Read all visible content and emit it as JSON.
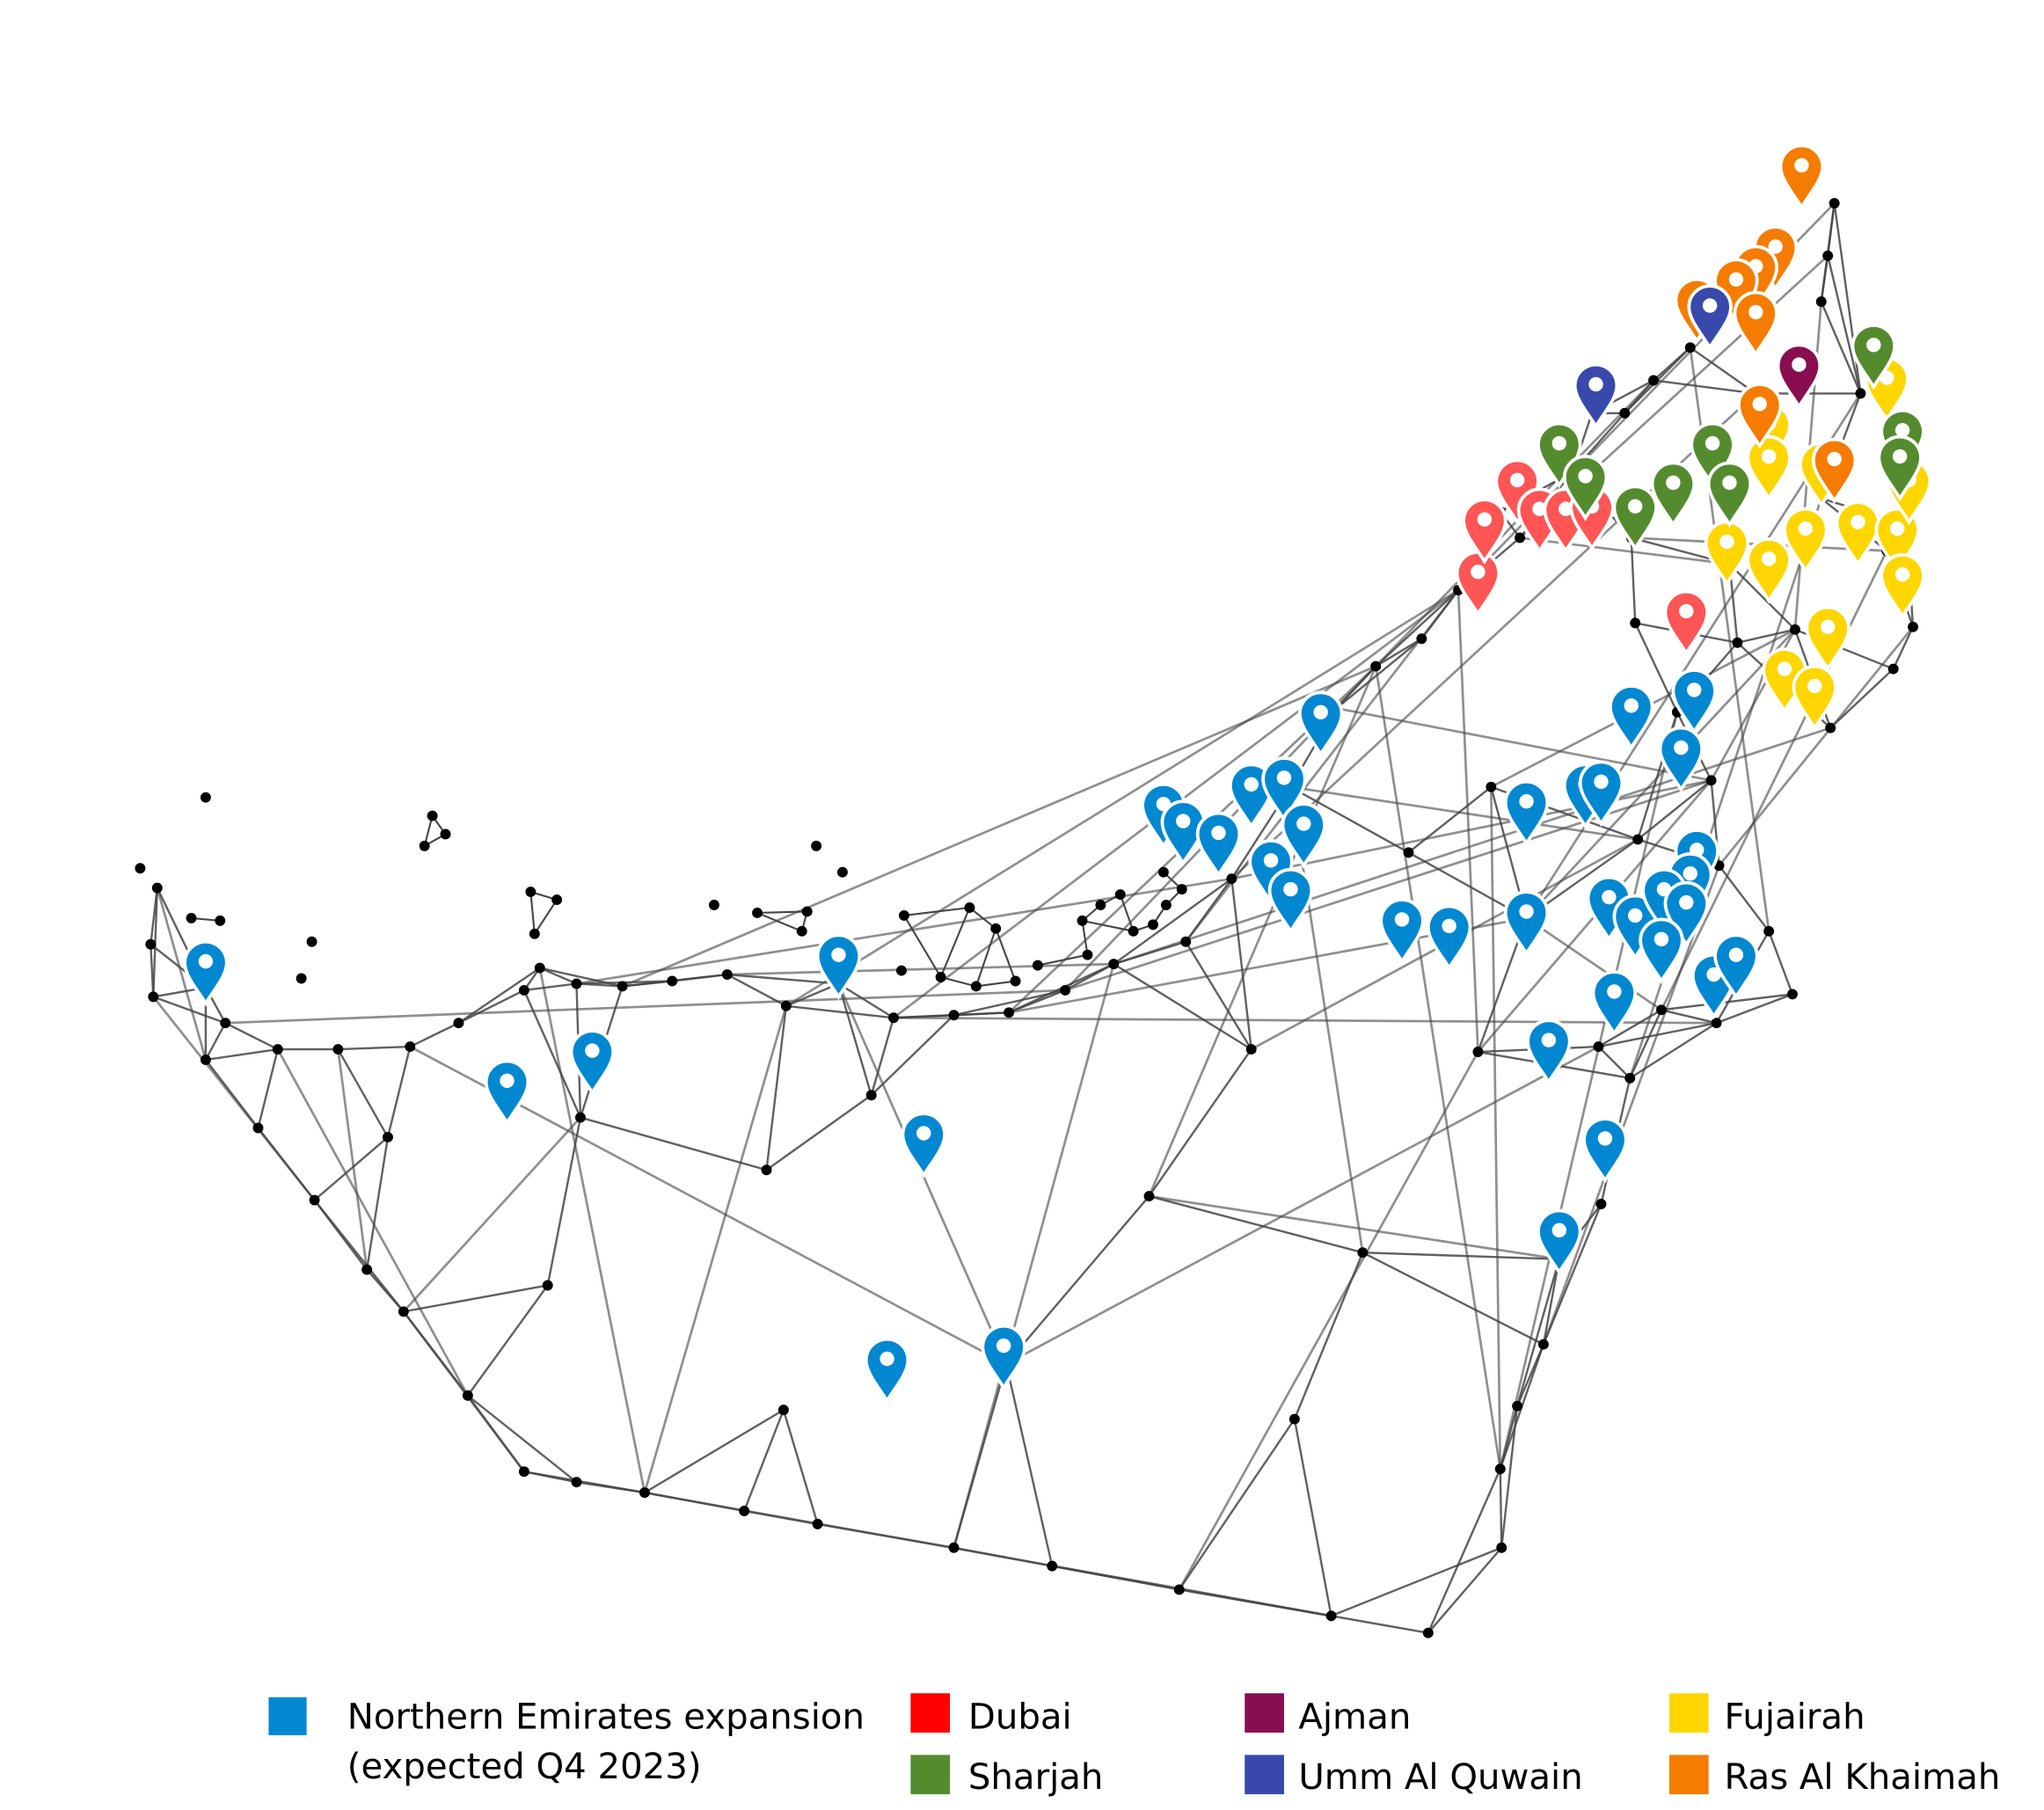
{
  "map": {
    "node_color": "#000000",
    "edge_color": "#555555"
  },
  "legend": {
    "items": [
      {
        "key": "expansion",
        "label_line1": "Northern Emirates expansion",
        "label_line2": "(expected Q4 2023)",
        "color": "#0288d1",
        "pin_color": "#0288d1"
      },
      {
        "key": "dubai",
        "label_line1": "Dubai",
        "color": "#ff0000",
        "pin_color": "#ff5555"
      },
      {
        "key": "sharjah",
        "label_line1": "Sharjah",
        "color": "#558b2f",
        "pin_color": "#558b2f"
      },
      {
        "key": "ajman",
        "label_line1": "Ajman",
        "color": "#880e4f",
        "pin_color": "#880e4f"
      },
      {
        "key": "uaq",
        "label_line1": "Umm Al Quwain",
        "color": "#3949ab",
        "pin_color": "#3949ab"
      },
      {
        "key": "fujairah",
        "label_line1": "Fujairah",
        "color": "#ffd600",
        "pin_color": "#ffd600"
      },
      {
        "key": "rak",
        "label_line1": "Ras Al Khaimah",
        "color": "#f57c00",
        "pin_color": "#f57c00"
      }
    ]
  }
}
